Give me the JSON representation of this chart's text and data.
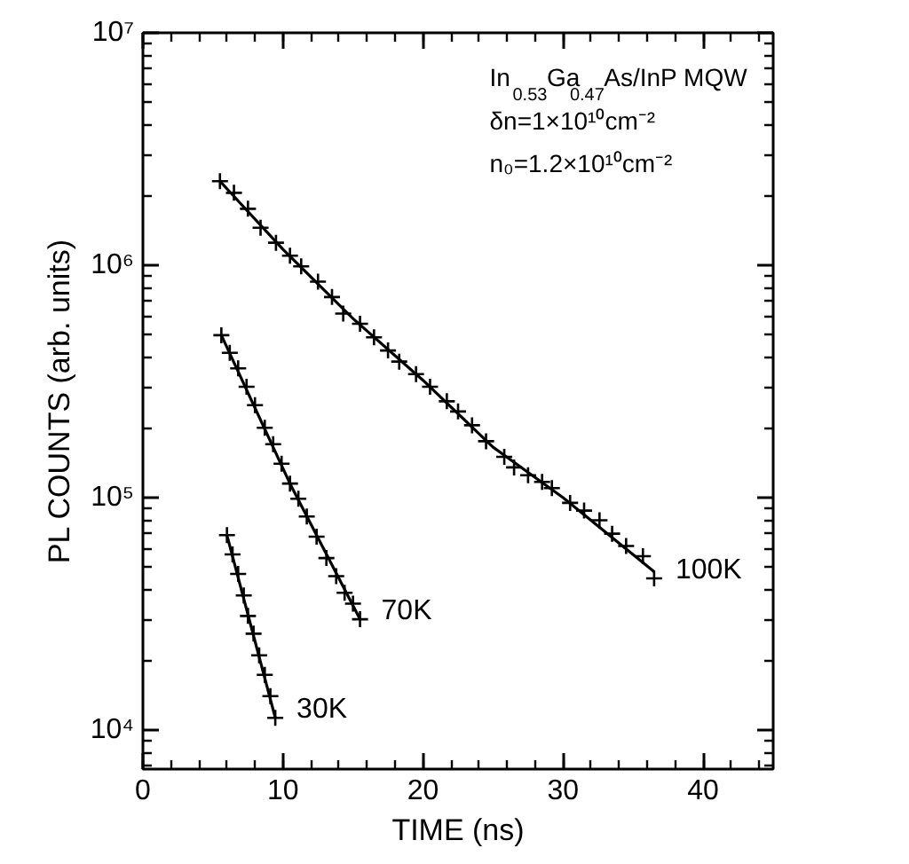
{
  "chart_data": {
    "type": "scatter",
    "xlabel": "TIME (ns)",
    "ylabel": "PL COUNTS (arb. units)",
    "log": "y",
    "marker": "cross",
    "xlim": [
      0,
      45
    ],
    "xticks": [
      0,
      10,
      20,
      30,
      40
    ],
    "ylim": [
      6800,
      10000000
    ],
    "yticks": [
      {
        "value": 10000,
        "label": "10⁴"
      },
      {
        "value": 100000,
        "label": "10⁵"
      },
      {
        "value": 1000000,
        "label": "10⁶"
      },
      {
        "value": 10000000,
        "label": "10⁷"
      }
    ],
    "annotations": [
      "In$_{0.53}$Ga$_{0.47}$As/InP  MQW",
      "δn=1×10¹⁰cm⁻²",
      "n₀=1.2×10¹⁰cm⁻²"
    ],
    "series": [
      {
        "name": "100K",
        "color": "#000000",
        "x": [
          5.5,
          6.5,
          7.5,
          8.4,
          9.5,
          10.5,
          11.3,
          12.5,
          13.5,
          14.3,
          15.5,
          16.5,
          17.5,
          18.3,
          19.5,
          20.5,
          21.7,
          22.5,
          23.5,
          24.5,
          25.8,
          26.5,
          27.5,
          28.5,
          29.2,
          30.5,
          31.5,
          32.6,
          33.5,
          34.5,
          35.7,
          36.5
        ],
        "values": [
          2300000,
          2050000,
          1750000,
          1450000,
          1250000,
          1100000,
          990000,
          850000,
          730000,
          620000,
          560000,
          490000,
          430000,
          385000,
          340000,
          300000,
          260000,
          235000,
          205000,
          175000,
          150000,
          135000,
          125000,
          117000,
          110000,
          95000,
          88000,
          80000,
          70000,
          62000,
          56000,
          45000
        ]
      },
      {
        "type": "line",
        "marker": "none",
        "color": "#000000",
        "x": [
          5.5,
          10,
          15,
          20,
          25,
          30,
          36.5
        ],
        "values": [
          2300000,
          1170000,
          590000,
          320000,
          165000,
          100000,
          48000
        ]
      },
      {
        "name": "70K",
        "color": "#000000",
        "x": [
          5.6,
          6.2,
          6.8,
          7.4,
          8.0,
          8.7,
          9.3,
          9.9,
          10.5,
          11.1,
          11.7,
          12.4,
          13.1,
          13.8,
          14.4,
          15.0,
          15.5
        ],
        "values": [
          500000,
          420000,
          360000,
          300000,
          250000,
          200000,
          170000,
          140000,
          115000,
          99000,
          83000,
          68000,
          55000,
          46000,
          39000,
          35000,
          30000
        ]
      },
      {
        "type": "line",
        "marker": "none",
        "color": "#000000",
        "x": [
          5.6,
          10.5,
          15.5
        ],
        "values": [
          500000,
          115000,
          30000
        ]
      },
      {
        "name": "30K",
        "color": "#000000",
        "x": [
          6.0,
          6.4,
          6.8,
          7.2,
          7.5,
          7.9,
          8.3,
          8.7,
          9.1,
          9.45
        ],
        "values": [
          69000,
          57000,
          47000,
          38000,
          31000,
          26000,
          21000,
          17300,
          14000,
          11300
        ]
      },
      {
        "type": "line",
        "marker": "none",
        "color": "#000000",
        "x": [
          6.0,
          9.45
        ],
        "values": [
          69000,
          11300
        ]
      }
    ]
  }
}
